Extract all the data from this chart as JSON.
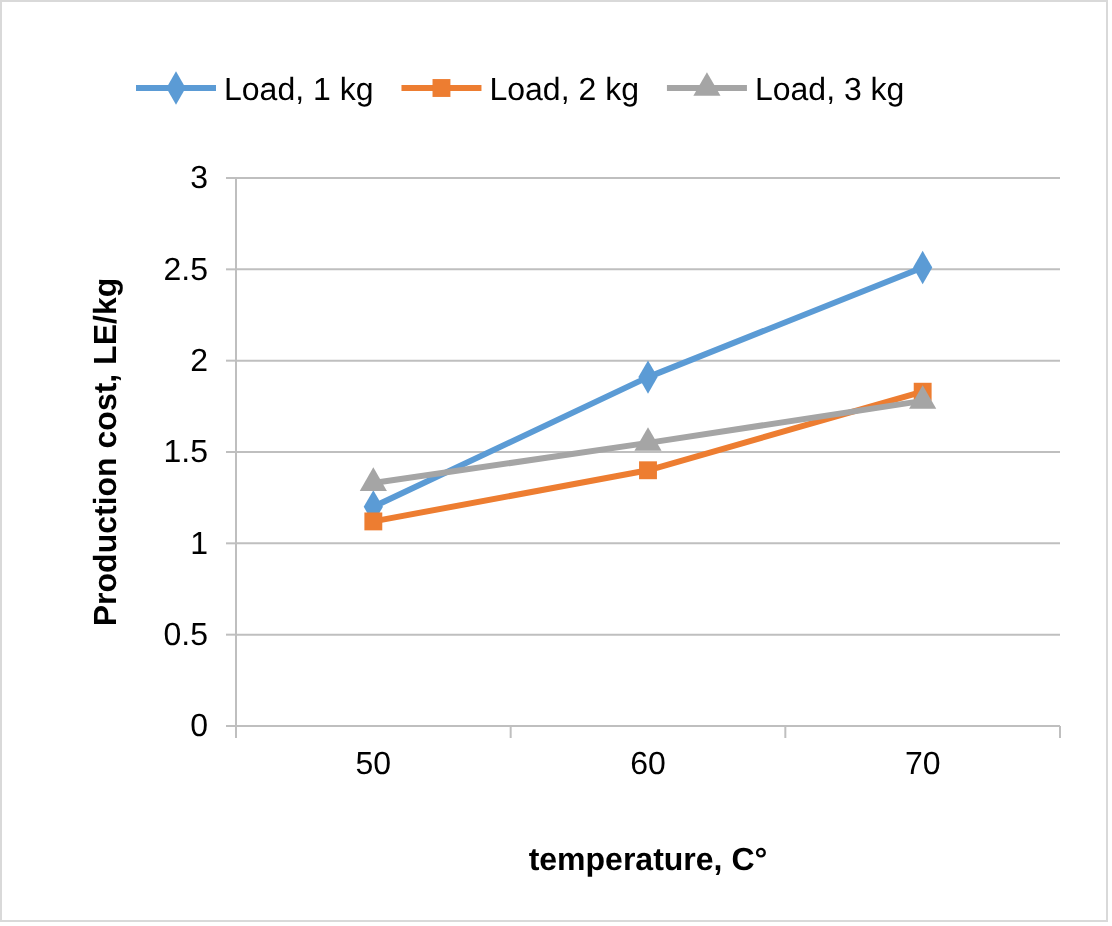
{
  "chart_data": {
    "type": "line",
    "xlabel": "temperature, C°",
    "ylabel": "Production cost, LE/kg",
    "categories": [
      "50",
      "60",
      "70"
    ],
    "series": [
      {
        "name": "Load, 1 kg",
        "color": "#5b9bd5",
        "marker": "diamond",
        "values": [
          1.2,
          1.91,
          2.51
        ]
      },
      {
        "name": "Load, 2 kg",
        "color": "#ed7d31",
        "marker": "square",
        "values": [
          1.12,
          1.4,
          1.83
        ]
      },
      {
        "name": "Load, 3 kg",
        "color": "#a5a5a5",
        "marker": "triangle",
        "values": [
          1.33,
          1.55,
          1.78
        ]
      }
    ],
    "ylim": [
      0,
      3
    ],
    "yticks": [
      0,
      {
        "value": 0.5,
        "label": "0.5"
      },
      1,
      {
        "value": 1.5,
        "label": "1.5"
      },
      2,
      {
        "value": 2.5,
        "label": "2.5"
      },
      3
    ],
    "grid": "y",
    "legend": "top",
    "line_style": "solid"
  }
}
